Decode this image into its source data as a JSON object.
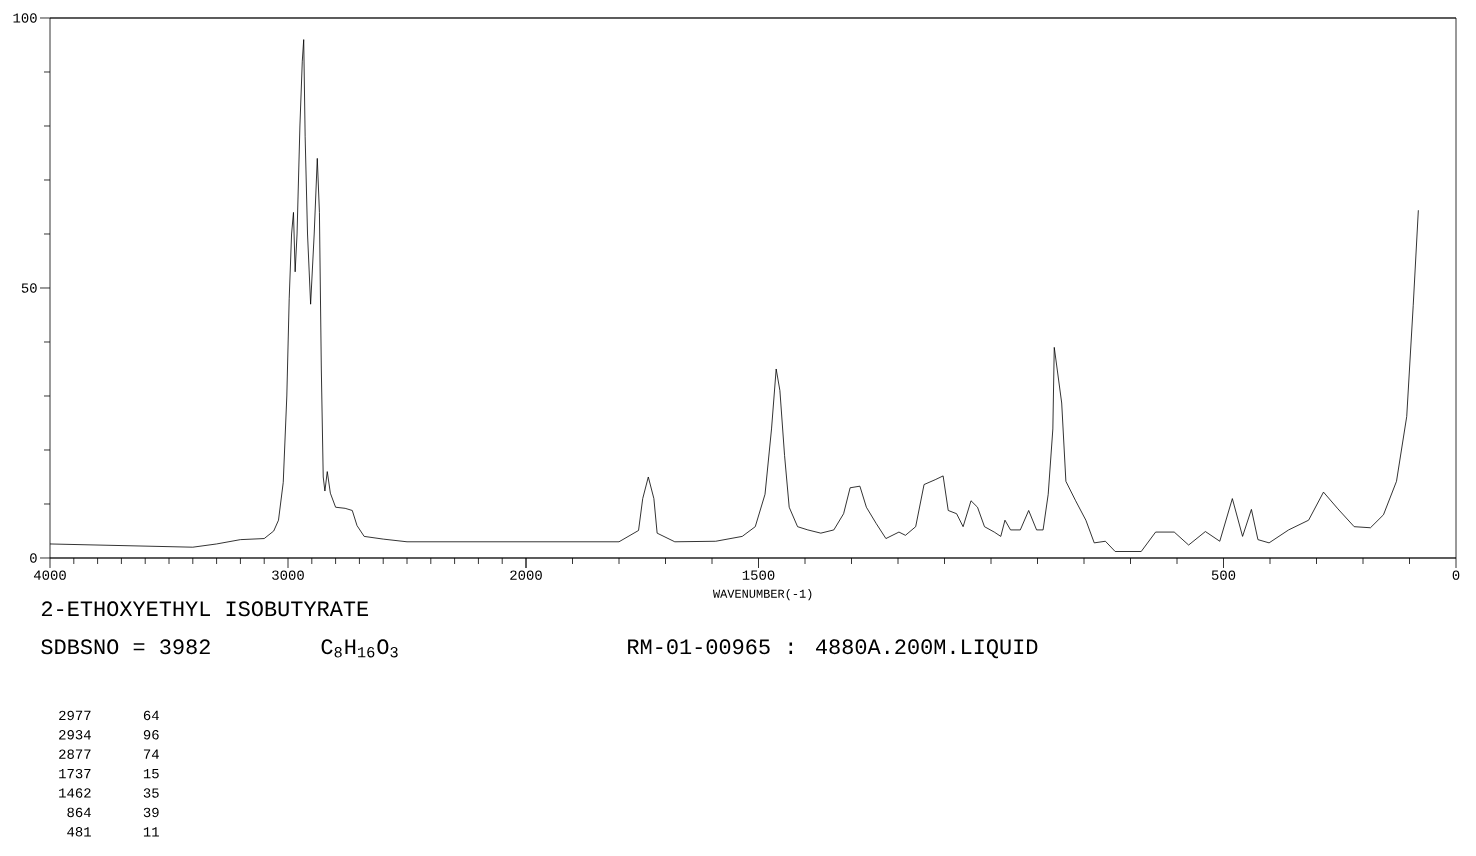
{
  "chart_data": [
    {
      "type": "line",
      "title": "2-ETHOXYETHYL ISOBUTYRATE",
      "annotations": [
        "SDBSNO = 3982",
        "C$_{8}$H$_{16}$O$_{3}$",
        "RM-01-00965 : 4880A.200M.LIQUID",
        "2977",
        "64",
        "2934",
        "96",
        "2877",
        "74",
        "1737",
        "15",
        "1462",
        "35",
        "864",
        "39",
        "481",
        "11"
      ],
      "x": [
        4000,
        3800,
        3600,
        3400,
        3300,
        3200,
        3100,
        3060,
        3040,
        3020,
        3005,
        2995,
        2985,
        2977,
        2970,
        2962,
        2950,
        2940,
        2934,
        2928,
        2918,
        2905,
        2890,
        2877,
        2868,
        2860,
        2852,
        2845,
        2835,
        2822,
        2800,
        2760,
        2730,
        2710,
        2680,
        2600,
        2500,
        2300,
        2100,
        2000
      ],
      "values": [
        2.6,
        2.4,
        2.2,
        2.0,
        2.6,
        3.4,
        3.6,
        5,
        7,
        14,
        30,
        48,
        60,
        64,
        53,
        60,
        80,
        92,
        96,
        78,
        60,
        47,
        60,
        74,
        64,
        35,
        15,
        12.4,
        16,
        12,
        9.4,
        9.2,
        8.8,
        6,
        4,
        3.5,
        3,
        3,
        3,
        3
      ],
      "color": "#000000",
      "xlim": [
        4000,
        2000
      ],
      "ylim": [
        0,
        100
      ],
      "xticks": [
        4000,
        3000,
        2000
      ],
      "yticks": [
        0,
        50,
        100
      ],
      "grid": false,
      "marker": "none",
      "line_style": "solid"
    },
    {
      "type": "line",
      "xlabel": "WAVENUMBER(-1)",
      "x": [
        2000,
        1900,
        1800,
        1758,
        1749,
        1737,
        1725,
        1718,
        1680,
        1592,
        1535,
        1507,
        1486,
        1472,
        1462,
        1454,
        1444,
        1434,
        1416,
        1394,
        1366,
        1338,
        1317,
        1303,
        1282,
        1268,
        1247,
        1226,
        1198,
        1184,
        1162,
        1144,
        1120,
        1103,
        1092,
        1074,
        1060,
        1043,
        1029,
        1014,
        993,
        979,
        970,
        958,
        937,
        919,
        902,
        888,
        877,
        867,
        864,
        848,
        839,
        818,
        796,
        778,
        754,
        733,
        677,
        646,
        606,
        575,
        539,
        508,
        481,
        459,
        440,
        426,
        402,
        360,
        317,
        285,
        254,
        219,
        184,
        156,
        128,
        106,
        92,
        81
      ],
      "values": [
        3,
        3,
        3,
        5.1,
        11,
        15,
        11,
        4.6,
        3,
        3.1,
        4,
        5.8,
        11.8,
        23.9,
        35,
        31,
        19,
        9.4,
        5.8,
        5.2,
        4.6,
        5.2,
        8.2,
        13,
        13.3,
        9.4,
        6.4,
        3.6,
        4.8,
        4.2,
        5.8,
        13.6,
        14.5,
        15.2,
        8.8,
        8.2,
        5.8,
        10.6,
        9.4,
        5.8,
        4.8,
        4,
        7,
        5.2,
        5.2,
        8.8,
        5.2,
        5.2,
        11.8,
        23.9,
        39,
        28.7,
        14.2,
        10.6,
        7,
        2.8,
        3.1,
        1.2,
        1.2,
        4.8,
        4.8,
        2.4,
        4.9,
        3.1,
        11,
        4,
        9,
        3.4,
        2.8,
        5.2,
        7,
        12.2,
        9.1,
        5.8,
        5.6,
        8,
        14.2,
        26.2,
        46.8,
        64.4
      ],
      "color": "#000000",
      "xlim": [
        2000,
        0
      ],
      "ylim": [
        0,
        100
      ],
      "xticks": [
        {
          "value": 2000,
          "label": null
        },
        1500,
        500,
        0
      ],
      "tick_labels": "x",
      "grid": false,
      "marker": "none",
      "line_style": "solid"
    }
  ]
}
